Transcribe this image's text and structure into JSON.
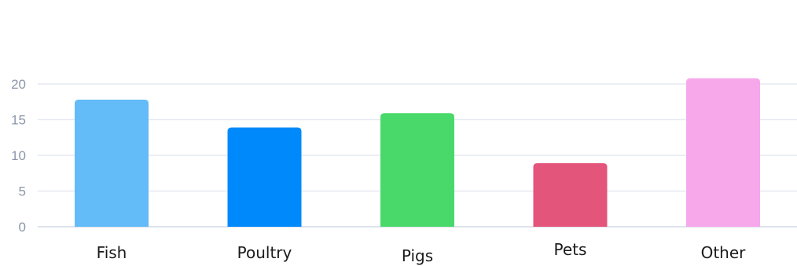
{
  "chart_data": {
    "type": "bar",
    "categories": [
      "Fish",
      "Poultry",
      "Pigs",
      "Pets",
      "Other"
    ],
    "values": [
      17.8,
      13.9,
      15.9,
      8.9,
      20.8
    ],
    "colors": [
      "#63bbf7",
      "#0089fa",
      "#48d96a",
      "#e4557b",
      "#f7a8ea"
    ],
    "ylim": [
      0,
      20
    ],
    "yticks": [
      0,
      5,
      10,
      15,
      20
    ],
    "grid": true,
    "title": "",
    "xlabel": "",
    "ylabel": ""
  }
}
